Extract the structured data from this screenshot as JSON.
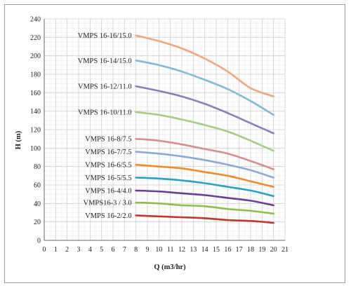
{
  "chart_data": {
    "type": "line",
    "title": "",
    "xlabel": "Q (m3/hr)",
    "ylabel": "H (m)",
    "xlim": [
      0,
      21
    ],
    "ylim": [
      0,
      240
    ],
    "x_ticks": [
      0,
      1,
      2,
      3,
      4,
      5,
      6,
      7,
      8,
      9,
      10,
      11,
      12,
      13,
      14,
      15,
      16,
      17,
      18,
      19,
      20,
      21
    ],
    "y_ticks": [
      0,
      20,
      40,
      60,
      80,
      100,
      120,
      140,
      160,
      180,
      200,
      220,
      240
    ],
    "grid": true,
    "legend": "inline labels to the left of each curve",
    "x": [
      8,
      10,
      12,
      14,
      16,
      18,
      20
    ],
    "series": [
      {
        "name": "VMPS 16-16/15.0",
        "color": "#f4a57a",
        "values": [
          222,
          216,
          208,
          197,
          183,
          165,
          156
        ]
      },
      {
        "name": "VMPS 16-14/15.0",
        "color": "#7fbad6",
        "values": [
          195,
          190,
          183,
          174,
          164,
          151,
          136
        ]
      },
      {
        "name": "VMPS 16-12/11.0",
        "color": "#8d7eb8",
        "values": [
          167,
          162,
          156,
          148,
          138,
          127,
          116
        ]
      },
      {
        "name": "VMPS 16-10/11.0",
        "color": "#a9cb7e",
        "values": [
          139,
          136,
          131,
          125,
          118,
          108,
          97
        ]
      },
      {
        "name": "VMPS 16-8/7.5",
        "color": "#d88c8c",
        "values": [
          110,
          108,
          104,
          99,
          94,
          86,
          77
        ]
      },
      {
        "name": "VMPS 16-7/7.5",
        "color": "#8aa8d8",
        "values": [
          96,
          94,
          91,
          87,
          82,
          76,
          68
        ]
      },
      {
        "name": "VMPS 16-6/5.5",
        "color": "#f08a2a",
        "values": [
          82,
          80,
          78,
          74,
          70,
          64,
          58
        ]
      },
      {
        "name": "VMPS 16-5/5.5",
        "color": "#2aa0c6",
        "values": [
          68,
          67,
          65,
          62,
          58,
          54,
          48
        ]
      },
      {
        "name": "VMPS 16-4/4.0",
        "color": "#6a3d99",
        "values": [
          54,
          53,
          51,
          49,
          46,
          43,
          38
        ]
      },
      {
        "name": "VMPS16-3 / 3.0",
        "color": "#8cbf4a",
        "values": [
          41,
          40,
          38,
          37,
          34,
          32,
          29
        ]
      },
      {
        "name": "VMPS 16-2/2.0",
        "color": "#c0392b",
        "values": [
          27,
          26,
          25,
          24,
          22,
          21,
          19
        ]
      }
    ],
    "gridline_color": "#d0d0d0"
  }
}
